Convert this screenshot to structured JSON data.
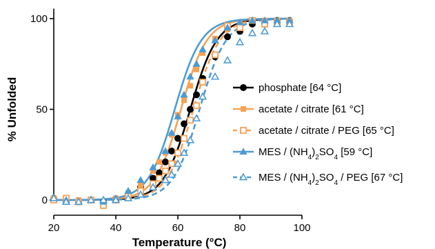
{
  "chart_data": {
    "type": "scatter",
    "title": "",
    "xlabel": "Temperature (°C)",
    "ylabel": "% Unfolded",
    "xlim": [
      20,
      100
    ],
    "ylim": [
      -3,
      104
    ],
    "xticks": [
      20,
      40,
      60,
      80,
      100
    ],
    "yticks": [
      0,
      50,
      100
    ],
    "grid": false,
    "legend_position": "right",
    "series": [
      {
        "name": "phosphate [64 °C]",
        "legend_parts": [
          {
            "t": "phosphate [64 °C]"
          }
        ],
        "color": "#000000",
        "marker": "circle-filled",
        "line": "solid",
        "midpoint": 64,
        "slope": 4.3,
        "x": [
          20,
          24,
          28,
          32,
          36,
          40,
          44,
          48,
          52,
          54,
          56,
          58,
          60,
          62,
          64,
          66,
          68,
          72,
          76,
          80,
          84,
          88,
          92,
          96
        ],
        "y": [
          1,
          0,
          -1,
          0,
          -1,
          0,
          3,
          7,
          12,
          15,
          21,
          27,
          34,
          42,
          50,
          58,
          67,
          79,
          90,
          93,
          97,
          97,
          99,
          99
        ]
      },
      {
        "name": "acetate / citrate [61 °C]",
        "legend_parts": [
          {
            "t": "acetate / citrate [61 °C]"
          }
        ],
        "color": "#F7A154",
        "marker": "square-filled",
        "line": "solid",
        "midpoint": 61,
        "slope": 4.2,
        "x": [
          20,
          24,
          28,
          32,
          36,
          40,
          44,
          48,
          52,
          54,
          56,
          58,
          60,
          62,
          64,
          66,
          68,
          72,
          76,
          80,
          84,
          88,
          92,
          96
        ],
        "y": [
          1,
          1,
          0,
          0,
          -2,
          1,
          4,
          8,
          16,
          21,
          26,
          36,
          47,
          55,
          63,
          72,
          81,
          89,
          94,
          97,
          99,
          99,
          99,
          99
        ]
      },
      {
        "name": "acetate / citrate / PEG [65 °C]",
        "legend_parts": [
          {
            "t": "acetate / citrate / PEG [65 °C]"
          }
        ],
        "color": "#F7A154",
        "marker": "square-open",
        "line": "dashed",
        "midpoint": 65,
        "slope": 4.3,
        "x": [
          20,
          24,
          28,
          32,
          36,
          40,
          44,
          48,
          52,
          54,
          56,
          58,
          60,
          62,
          64,
          66,
          68,
          72,
          76,
          80,
          84,
          88,
          92,
          96
        ],
        "y": [
          0,
          1,
          -1,
          0,
          -3,
          0,
          2,
          5,
          9,
          12,
          16,
          20,
          26,
          34,
          44,
          52,
          65,
          80,
          96,
          95,
          99,
          97,
          98,
          98
        ]
      },
      {
        "name": "MES / (NH4)2SO4 [59 °C]",
        "legend_parts": [
          {
            "t": "MES / (NH"
          },
          {
            "t": "4",
            "sub": true
          },
          {
            "t": ")"
          },
          {
            "t": "2",
            "sub": true
          },
          {
            "t": "SO"
          },
          {
            "t": "4",
            "sub": true
          },
          {
            "t": " [59 °C]"
          }
        ],
        "color": "#4C9BD4",
        "marker": "triangle-filled",
        "line": "solid",
        "midpoint": 59,
        "slope": 4.3,
        "x": [
          20,
          24,
          28,
          32,
          36,
          40,
          44,
          48,
          52,
          56,
          58,
          60,
          62,
          64,
          66,
          68,
          72,
          76,
          80,
          84,
          88,
          92,
          96
        ],
        "y": [
          1,
          0,
          -1,
          0,
          -1,
          1,
          5,
          11,
          18,
          27,
          37,
          46,
          58,
          68,
          75,
          83,
          88,
          95,
          98,
          99,
          99,
          99,
          99
        ]
      },
      {
        "name": "MES / (NH4)2SO4 / PEG [67 °C]",
        "legend_parts": [
          {
            "t": "MES / (NH"
          },
          {
            "t": "4",
            "sub": true
          },
          {
            "t": ")"
          },
          {
            "t": "2",
            "sub": true
          },
          {
            "t": "SO"
          },
          {
            "t": "4",
            "sub": true
          },
          {
            "t": " / PEG [67 °C]"
          }
        ],
        "color": "#4C9BD4",
        "marker": "triangle-open",
        "line": "dashed",
        "midpoint": 67,
        "slope": 4.3,
        "x": [
          20,
          24,
          28,
          32,
          36,
          40,
          44,
          48,
          52,
          56,
          58,
          60,
          62,
          64,
          66,
          68,
          72,
          76,
          80,
          84,
          88,
          92,
          96
        ],
        "y": [
          1,
          -1,
          -1,
          0,
          0,
          0,
          1,
          3,
          7,
          11,
          14,
          20,
          26,
          33,
          45,
          57,
          68,
          77,
          87,
          92,
          93,
          97,
          97
        ]
      }
    ]
  }
}
